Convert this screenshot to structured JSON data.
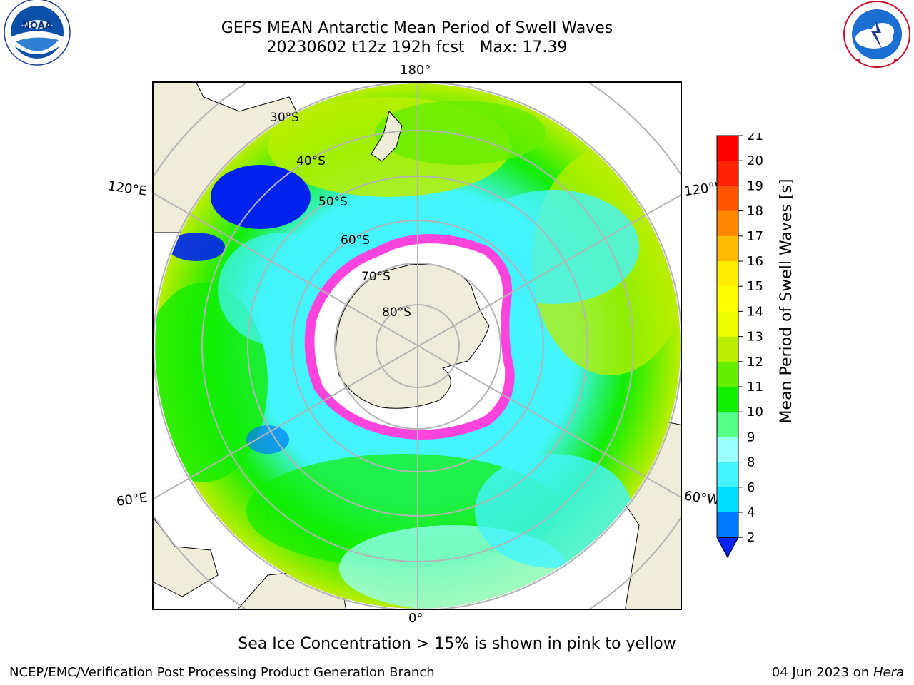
{
  "header": {
    "title_line1": "GEFS MEAN Antarctic Mean Period of Swell Waves",
    "title_line2_run": "20230602 t12z 192h fcst",
    "title_line2_max": "Max: 17.39"
  },
  "logos": {
    "noaa": {
      "text": "NOAA",
      "ring_text": "NATIONAL OCEANIC AND ATMOSPHERIC ADMINISTRATION · U.S. DEPARTMENT OF COMMERCE"
    },
    "nws": {
      "ring_text": "NATIONAL WEATHER SERVICE"
    }
  },
  "map": {
    "projection": "south polar stereographic",
    "longitude_labels": {
      "top": "180°",
      "bottom": "0°",
      "left_upper": "120°E",
      "left_lower": "60°E",
      "right_upper": "120°W",
      "right_lower": "60°W"
    },
    "latitude_labels": [
      "30°S",
      "40°S",
      "50°S",
      "60°S",
      "70°S",
      "80°S"
    ],
    "colors": {
      "land": "#efedd9",
      "ice_edge": "#ff44dd",
      "ice_inner": "#ffffff",
      "grid": "#b4b4b4"
    }
  },
  "colorbar": {
    "label": "Mean Period of Swell Waves [s]",
    "ticks": [
      "2",
      "4",
      "6",
      "8",
      "9",
      "10",
      "11",
      "12",
      "13",
      "14",
      "15",
      "16",
      "17",
      "18",
      "19",
      "20",
      "21"
    ],
    "colors": [
      "#0022ee",
      "#0077ff",
      "#00ddff",
      "#44f4ff",
      "#99ffff",
      "#55ff88",
      "#11ee00",
      "#66ee00",
      "#bbee00",
      "#eeff00",
      "#ffff00",
      "#ffee00",
      "#ffbb00",
      "#ff8800",
      "#ff5500",
      "#ff2200",
      "#ff0000"
    ],
    "extend": "min"
  },
  "footer": {
    "caption": "Sea Ice Concentration > 15% is shown in pink to yellow",
    "credit": "NCEP/EMC/Verification Post Processing Product Generation Branch",
    "date": "04 Jun 2023 on ",
    "host": "Hera"
  }
}
